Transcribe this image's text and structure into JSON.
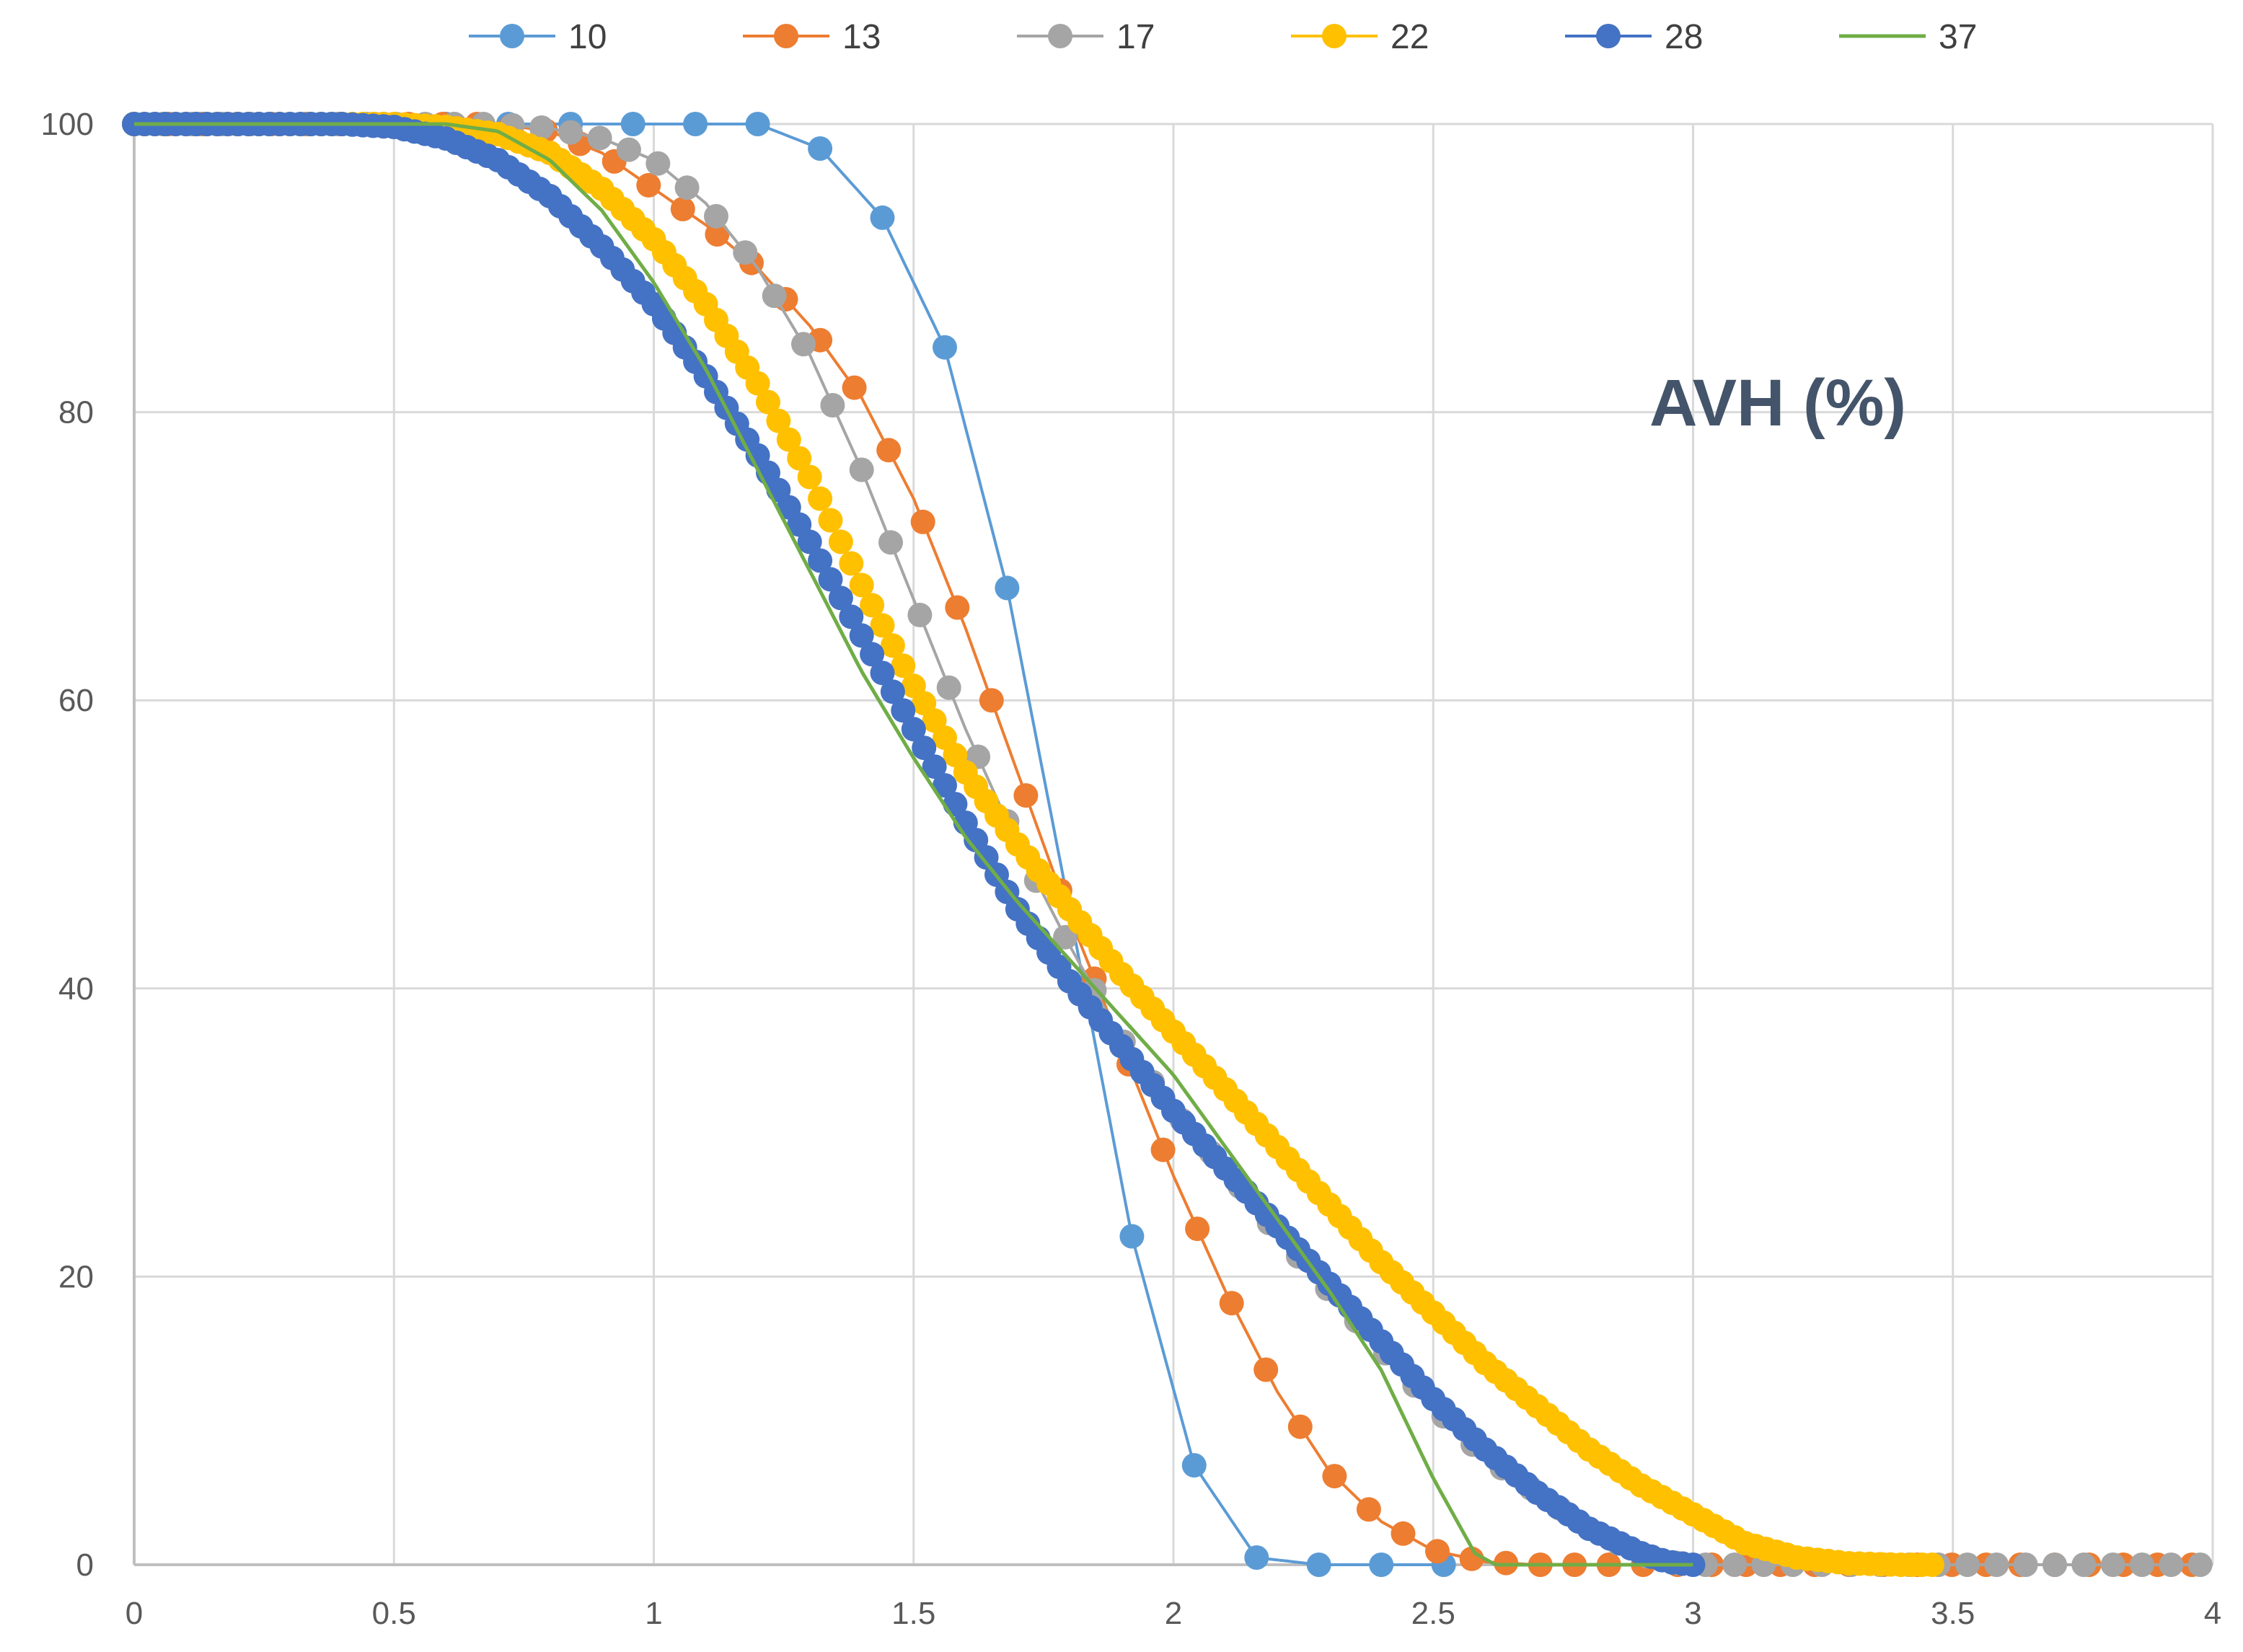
{
  "chart_data": {
    "type": "line",
    "title": "AVH (%)",
    "xlabel": "",
    "ylabel": "",
    "xlim": [
      0,
      4
    ],
    "ylim": [
      0,
      100
    ],
    "xticks": [
      "0",
      "0.5",
      "1",
      "1.5",
      "2",
      "2.5",
      "3",
      "3.5",
      "4"
    ],
    "yticks": [
      "0",
      "20",
      "40",
      "60",
      "80",
      "100"
    ],
    "grid": true,
    "legend_position": "top",
    "series": [
      {
        "name": "10",
        "color": "#5B9BD5",
        "markers": true,
        "step": 0.12,
        "x": [
          0,
          0.12,
          0.24,
          0.36,
          0.48,
          0.6,
          0.72,
          0.84,
          0.96,
          1.08,
          1.2,
          1.32,
          1.44,
          1.56,
          1.68,
          1.8,
          1.92,
          2.04,
          2.16,
          2.28,
          2.4,
          2.52
        ],
        "y": [
          100,
          100,
          100,
          100,
          100,
          100,
          100,
          100,
          100,
          100,
          100,
          98.3,
          93.5,
          84.5,
          67.8,
          45.5,
          22.8,
          6.9,
          0.5,
          0,
          0,
          0
        ]
      },
      {
        "name": "13",
        "color": "#ED7D31",
        "markers": true,
        "step": 0.066,
        "x": [
          0,
          0.5,
          0.6,
          0.7,
          0.8,
          0.9,
          1.0,
          1.1,
          1.2,
          1.3,
          1.4,
          1.5,
          1.6,
          1.7,
          1.8,
          1.9,
          2.0,
          2.1,
          2.2,
          2.3,
          2.4,
          2.5,
          2.6,
          2.7,
          3.0,
          3.5,
          4.0
        ],
        "y": [
          100,
          100,
          100,
          100,
          99.5,
          98,
          95.5,
          93,
          90,
          86,
          81,
          74,
          65,
          55,
          45,
          36,
          27,
          19,
          12,
          6.5,
          3,
          1,
          0.2,
          0,
          0,
          0,
          0
        ]
      },
      {
        "name": "17",
        "color": "#A5A5A5",
        "markers": true,
        "step": 0.056,
        "x": [
          0,
          0.6,
          0.7,
          0.8,
          0.9,
          1.0,
          1.1,
          1.2,
          1.3,
          1.4,
          1.5,
          1.6,
          1.7,
          1.8,
          1.9,
          2.0,
          2.1,
          2.2,
          2.3,
          2.4,
          2.5,
          2.6,
          2.7,
          2.8,
          2.9,
          2.95,
          3.0,
          3.5,
          4.0
        ],
        "y": [
          100,
          100,
          100,
          99.7,
          99,
          97.5,
          94.5,
          90,
          84,
          76,
          67,
          58,
          50,
          43,
          36.5,
          31.5,
          27.5,
          23,
          19,
          15,
          11,
          7.5,
          5,
          2.5,
          0.7,
          0.2,
          0,
          0,
          0
        ]
      },
      {
        "name": "22",
        "color": "#FFC000",
        "markers": true,
        "step": 0.02,
        "x": [
          0,
          0.5,
          0.6,
          0.7,
          0.8,
          0.9,
          1.0,
          1.1,
          1.2,
          1.3,
          1.4,
          1.5,
          1.6,
          1.7,
          1.8,
          1.9,
          2.0,
          2.1,
          2.2,
          2.3,
          2.4,
          2.5,
          2.6,
          2.7,
          2.8,
          2.9,
          3.0,
          3.1,
          3.2,
          3.3,
          3.4,
          3.46
        ],
        "y": [
          100,
          100,
          99.8,
          99.3,
          98,
          95.5,
          92,
          87.5,
          82,
          75.5,
          68,
          61,
          55,
          50,
          45.5,
          41,
          37,
          33,
          29,
          25,
          21,
          17.5,
          14,
          11,
          8,
          5.5,
          3.5,
          1.5,
          0.5,
          0.1,
          0,
          0
        ]
      },
      {
        "name": "28",
        "color": "#4472C4",
        "markers": true,
        "step": 0.02,
        "x": [
          0,
          0.4,
          0.5,
          0.6,
          0.7,
          0.8,
          0.9,
          1.0,
          1.1,
          1.2,
          1.3,
          1.4,
          1.5,
          1.6,
          1.7,
          1.8,
          1.9,
          2.0,
          2.1,
          2.2,
          2.3,
          2.4,
          2.5,
          2.6,
          2.7,
          2.8,
          2.9,
          2.95,
          3.0
        ],
        "y": [
          100,
          100,
          99.8,
          99,
          97.5,
          95,
          91.5,
          87.5,
          82.5,
          77,
          71,
          64.5,
          58,
          51.5,
          45.5,
          40.5,
          36,
          31.5,
          27.5,
          23.5,
          19.5,
          15.5,
          11.5,
          8,
          5,
          2.5,
          0.8,
          0.2,
          0
        ]
      },
      {
        "name": "37",
        "color": "#70AD47",
        "markers": false,
        "step": 0,
        "x": [
          0,
          0.5,
          0.6,
          0.7,
          0.8,
          0.9,
          1.0,
          1.1,
          1.2,
          1.3,
          1.4,
          1.5,
          1.6,
          1.7,
          1.8,
          1.9,
          2.0,
          2.1,
          2.2,
          2.3,
          2.4,
          2.5,
          2.58,
          2.62,
          3.0
        ],
        "y": [
          100,
          100,
          100,
          99.5,
          97.5,
          94,
          89,
          83,
          76,
          69,
          62,
          56,
          50.5,
          46,
          42,
          38,
          34,
          29,
          24,
          19,
          13.5,
          6,
          0.8,
          0,
          0
        ]
      }
    ]
  }
}
